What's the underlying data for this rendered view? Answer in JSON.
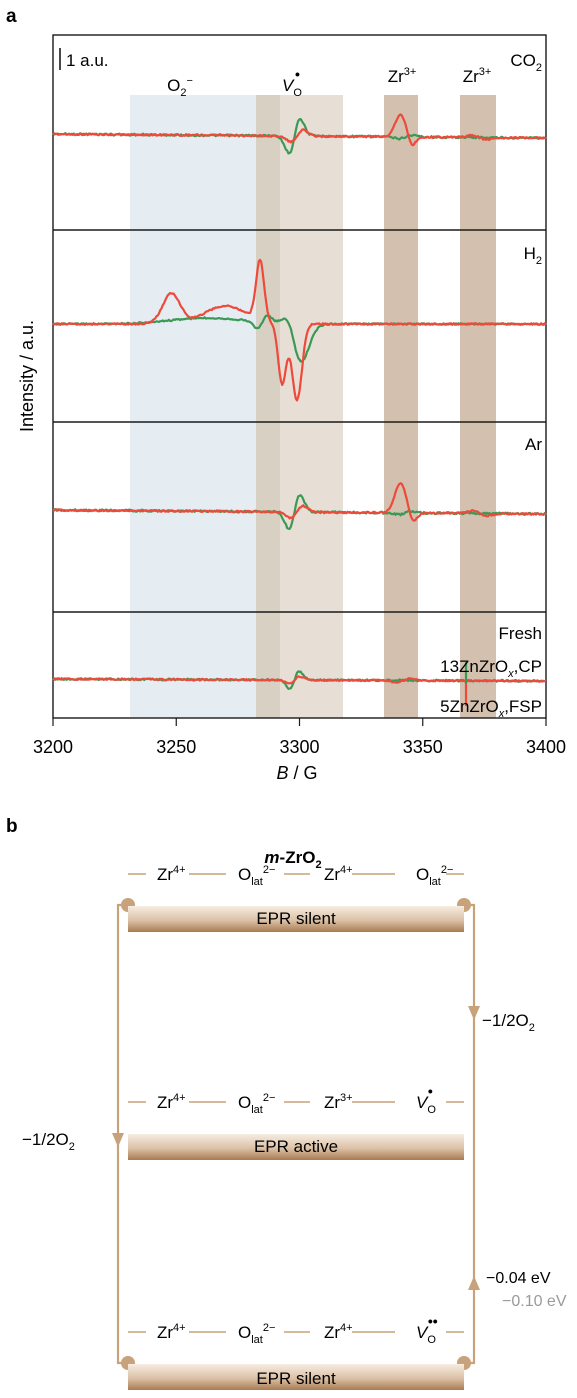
{
  "panel_a": {
    "letter": "a",
    "scale_bar_label": "1 a.u.",
    "ylabel": "Intensity / a.u.",
    "xlabel_var": "B",
    "xlabel_unit": " / G",
    "xticks": [
      "3200",
      "3250",
      "3300",
      "3350",
      "3400"
    ],
    "band_labels": {
      "o2": {
        "base": "O",
        "sub": "2",
        "sup": "−"
      },
      "vo": {
        "base": "V",
        "sub": "O",
        "sup": "•"
      },
      "zr3": {
        "base": "Zr",
        "sup": "3+"
      },
      "zr3b": {
        "base": "Zr",
        "sup": "3+"
      }
    },
    "panel_labels": [
      {
        "base": "CO",
        "sub": "2"
      },
      {
        "base": "H",
        "sub": "2"
      },
      {
        "base": "Ar"
      },
      {
        "base": "Fresh"
      }
    ],
    "legend": {
      "green": {
        "pre": "13ZnZrO",
        "sub": "x",
        "post": ",CP"
      },
      "red": {
        "pre": "5ZnZrO",
        "sub": "x",
        "post": ",FSP"
      }
    },
    "colors": {
      "green": "#3a9a55",
      "red": "#ee4a3c",
      "band_blue": "#e5edf2",
      "band_tan": "#e4dcd2",
      "band_dark": "#d3c5b6",
      "band_brown": "#c4ad9a"
    }
  },
  "chart_data": {
    "type": "line",
    "xlim": [
      3200,
      3400
    ],
    "x_ticks": [
      3200,
      3250,
      3300,
      3350,
      3400
    ],
    "xlabel": "B / G",
    "ylabel": "Intensity / a.u.",
    "shaded_regions_G": {
      "O2-": [
        3233,
        3283
      ],
      "VO-overlap": [
        3283,
        3292
      ],
      "VO": [
        3292,
        3318
      ],
      "Zr3+": [
        3334,
        3348
      ],
      "Zr3+ (2)": [
        3366,
        3379
      ]
    },
    "series_legend": [
      "13ZnZrOx,CP",
      "5ZnZrOx,FSP"
    ],
    "panels": [
      "CO2",
      "H2",
      "Ar",
      "Fresh"
    ]
  },
  "panel_b": {
    "letter": "b",
    "title_pre": "m",
    "title_main": "-ZrO",
    "title_sub": "2",
    "rows": [
      {
        "items": [
          {
            "base": "Zr",
            "sup": "4+"
          },
          {
            "base": "O",
            "sub": "lat",
            "sup": "2−"
          },
          {
            "base": "Zr",
            "sup": "4+"
          },
          {
            "base": "O",
            "sub": "lat",
            "sup": "2−"
          }
        ],
        "bar": "EPR silent"
      },
      {
        "items": [
          {
            "base": "Zr",
            "sup": "4+"
          },
          {
            "base": "O",
            "sub": "lat",
            "sup": "2−"
          },
          {
            "base": "Zr",
            "sup": "3+"
          },
          {
            "base": "V",
            "sub": "O",
            "sup": "•"
          }
        ],
        "bar": "EPR active"
      },
      {
        "items": [
          {
            "base": "Zr",
            "sup": "4+"
          },
          {
            "base": "O",
            "sub": "lat",
            "sup": "2−"
          },
          {
            "base": "Zr",
            "sup": "4+"
          },
          {
            "base": "V",
            "sub": "O",
            "sup": "••"
          }
        ],
        "bar": "EPR silent"
      }
    ],
    "arrow_right_top": {
      "pre": "−1/2O",
      "sub": "2"
    },
    "arrow_left": {
      "pre": "−1/2O",
      "sub": "2"
    },
    "energy_1": "−0.04 eV",
    "energy_2": "−0.10 eV",
    "colors": {
      "arrow": "#c8a27a",
      "energy2": "#9a9a9a",
      "bar_dark": "#b68a62",
      "bar_light": "#f6ece2"
    }
  }
}
